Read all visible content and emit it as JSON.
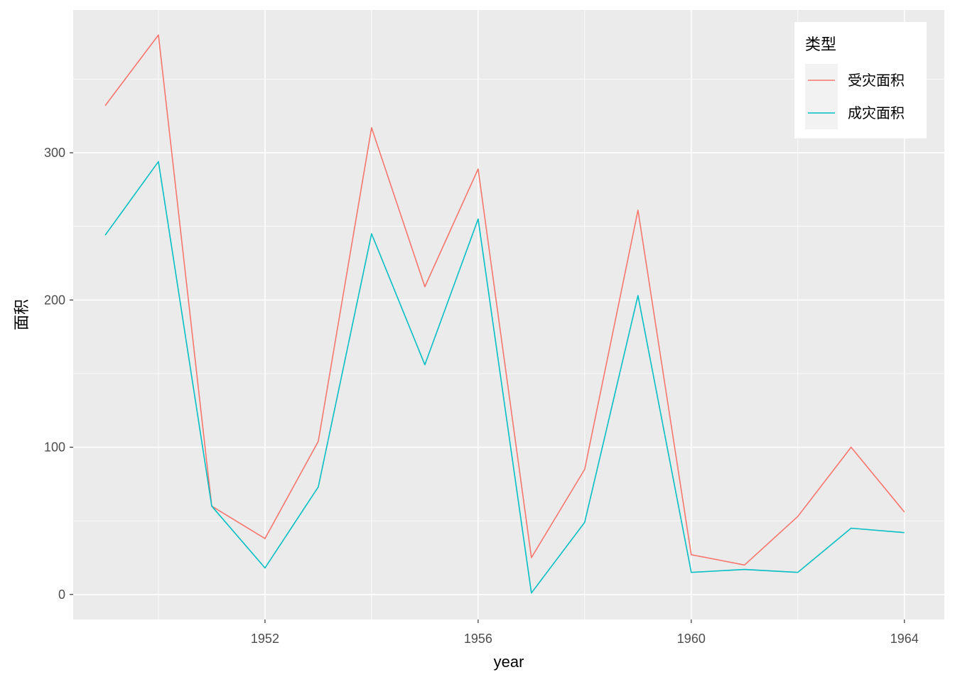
{
  "chart_data": {
    "type": "line",
    "xlabel": "year",
    "ylabel": "面积",
    "x": [
      1949,
      1950,
      1951,
      1952,
      1953,
      1954,
      1955,
      1956,
      1957,
      1958,
      1959,
      1960,
      1961,
      1962,
      1963,
      1964
    ],
    "x_ticks": [
      1952,
      1956,
      1960,
      1964
    ],
    "y_ticks": [
      0,
      100,
      200,
      300
    ],
    "xlim": [
      1948.4,
      1964.75
    ],
    "ylim": [
      -17,
      397
    ],
    "grid": true,
    "legend": {
      "title": "类型",
      "position": "top-right"
    },
    "series": [
      {
        "name": "受灾面积",
        "color": "#F8766D",
        "values": [
          332,
          380,
          60,
          38,
          104,
          317,
          209,
          289,
          25,
          85,
          261,
          27,
          20,
          53,
          100,
          56
        ]
      },
      {
        "name": "成灾面积",
        "color": "#00BFC4",
        "values": [
          244,
          294,
          60,
          18,
          73,
          245,
          156,
          255,
          1,
          49,
          203,
          15,
          17,
          15,
          45,
          42
        ]
      }
    ],
    "colors": {
      "panel": "#EBEBEB",
      "grid": "#FFFFFF",
      "legend_key": "#F2F2F2"
    }
  }
}
